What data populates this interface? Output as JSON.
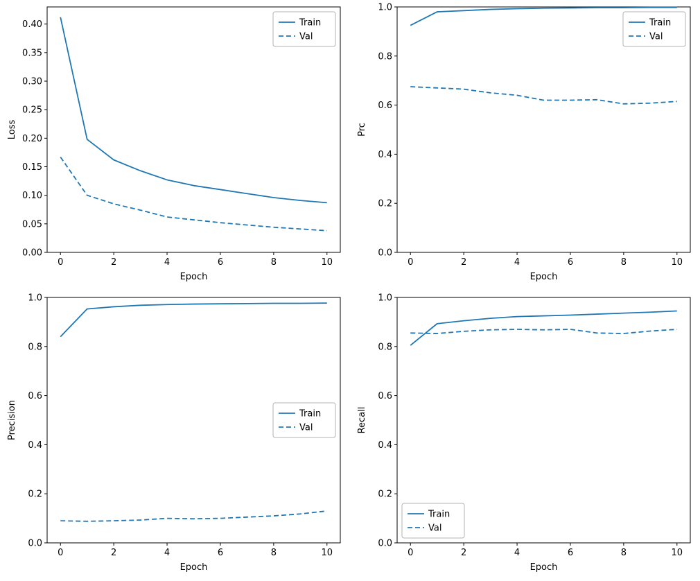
{
  "figure": {
    "background": "#ffffff",
    "accent_color": "#1f77b4"
  },
  "chart_data": [
    {
      "id": "loss",
      "type": "line",
      "title": "",
      "xlabel": "Epoch",
      "ylabel": "Loss",
      "x": [
        0,
        1,
        2,
        3,
        4,
        5,
        6,
        7,
        8,
        9,
        10
      ],
      "xlim": [
        -0.5,
        10.5
      ],
      "ylim": [
        0.0,
        0.43
      ],
      "xticks": [
        0,
        2,
        4,
        6,
        8,
        10
      ],
      "xtick_labels": [
        "0",
        "2",
        "4",
        "6",
        "8",
        "10"
      ],
      "yticks": [
        0.0,
        0.05,
        0.1,
        0.15,
        0.2,
        0.25,
        0.3,
        0.35,
        0.4
      ],
      "ytick_labels": [
        "0.00",
        "0.05",
        "0.10",
        "0.15",
        "0.20",
        "0.25",
        "0.30",
        "0.35",
        "0.40"
      ],
      "grid": false,
      "legend_pos": "upper-right",
      "series": [
        {
          "name": "Train",
          "style": "solid",
          "color": "#1f77b4",
          "values": [
            0.412,
            0.198,
            0.162,
            0.143,
            0.127,
            0.117,
            0.11,
            0.103,
            0.096,
            0.091,
            0.087
          ]
        },
        {
          "name": "Val",
          "style": "dashed",
          "color": "#1f77b4",
          "values": [
            0.167,
            0.1,
            0.085,
            0.074,
            0.062,
            0.057,
            0.052,
            0.048,
            0.044,
            0.041,
            0.038
          ]
        }
      ]
    },
    {
      "id": "prc",
      "type": "line",
      "title": "",
      "xlabel": "Epoch",
      "ylabel": "Prc",
      "x": [
        0,
        1,
        2,
        3,
        4,
        5,
        6,
        7,
        8,
        9,
        10
      ],
      "xlim": [
        -0.5,
        10.5
      ],
      "ylim": [
        0.0,
        1.0
      ],
      "xticks": [
        0,
        2,
        4,
        6,
        8,
        10
      ],
      "xtick_labels": [
        "0",
        "2",
        "4",
        "6",
        "8",
        "10"
      ],
      "yticks": [
        0.0,
        0.2,
        0.4,
        0.6,
        0.8,
        1.0
      ],
      "ytick_labels": [
        "0.0",
        "0.2",
        "0.4",
        "0.6",
        "0.8",
        "1.0"
      ],
      "grid": false,
      "legend_pos": "upper-right",
      "series": [
        {
          "name": "Train",
          "style": "solid",
          "color": "#1f77b4",
          "values": [
            0.925,
            0.98,
            0.985,
            0.99,
            0.993,
            0.995,
            0.996,
            0.997,
            0.997,
            0.998,
            0.998
          ]
        },
        {
          "name": "Val",
          "style": "dashed",
          "color": "#1f77b4",
          "values": [
            0.675,
            0.67,
            0.665,
            0.65,
            0.64,
            0.62,
            0.62,
            0.622,
            0.605,
            0.608,
            0.615
          ]
        }
      ]
    },
    {
      "id": "precision",
      "type": "line",
      "title": "",
      "xlabel": "Epoch",
      "ylabel": "Precision",
      "x": [
        0,
        1,
        2,
        3,
        4,
        5,
        6,
        7,
        8,
        9,
        10
      ],
      "xlim": [
        -0.5,
        10.5
      ],
      "ylim": [
        0.0,
        1.0
      ],
      "xticks": [
        0,
        2,
        4,
        6,
        8,
        10
      ],
      "xtick_labels": [
        "0",
        "2",
        "4",
        "6",
        "8",
        "10"
      ],
      "yticks": [
        0.0,
        0.2,
        0.4,
        0.6,
        0.8,
        1.0
      ],
      "ytick_labels": [
        "0.0",
        "0.2",
        "0.4",
        "0.6",
        "0.8",
        "1.0"
      ],
      "grid": false,
      "legend_pos": "center-right",
      "series": [
        {
          "name": "Train",
          "style": "solid",
          "color": "#1f77b4",
          "values": [
            0.84,
            0.953,
            0.962,
            0.968,
            0.971,
            0.973,
            0.974,
            0.975,
            0.976,
            0.976,
            0.977
          ]
        },
        {
          "name": "Val",
          "style": "dashed",
          "color": "#1f77b4",
          "values": [
            0.09,
            0.088,
            0.09,
            0.093,
            0.1,
            0.098,
            0.1,
            0.105,
            0.11,
            0.118,
            0.13
          ]
        }
      ]
    },
    {
      "id": "recall",
      "type": "line",
      "title": "",
      "xlabel": "Epoch",
      "ylabel": "Recall",
      "x": [
        0,
        1,
        2,
        3,
        4,
        5,
        6,
        7,
        8,
        9,
        10
      ],
      "xlim": [
        -0.5,
        10.5
      ],
      "ylim": [
        0.0,
        1.0
      ],
      "xticks": [
        0,
        2,
        4,
        6,
        8,
        10
      ],
      "xtick_labels": [
        "0",
        "2",
        "4",
        "6",
        "8",
        "10"
      ],
      "yticks": [
        0.0,
        0.2,
        0.4,
        0.6,
        0.8,
        1.0
      ],
      "ytick_labels": [
        "0.0",
        "0.2",
        "0.4",
        "0.6",
        "0.8",
        "1.0"
      ],
      "grid": false,
      "legend_pos": "lower-left",
      "series": [
        {
          "name": "Train",
          "style": "solid",
          "color": "#1f77b4",
          "values": [
            0.805,
            0.893,
            0.905,
            0.915,
            0.922,
            0.925,
            0.928,
            0.932,
            0.936,
            0.94,
            0.945
          ]
        },
        {
          "name": "Val",
          "style": "dashed",
          "color": "#1f77b4",
          "values": [
            0.855,
            0.853,
            0.862,
            0.868,
            0.87,
            0.868,
            0.87,
            0.855,
            0.853,
            0.863,
            0.87
          ]
        }
      ]
    }
  ]
}
